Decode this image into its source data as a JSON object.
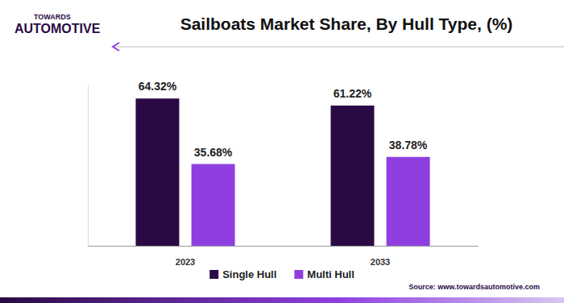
{
  "chart_data": {
    "type": "bar",
    "title": "Sailboats Market Share, By Hull Type, (%)",
    "categories": [
      "2023",
      "2033"
    ],
    "series": [
      {
        "name": "Single Hull",
        "color": "#2a0a45",
        "values": [
          64.32,
          61.22
        ],
        "value_labels": [
          "64.32%",
          "61.22%"
        ]
      },
      {
        "name": "Multi Hull",
        "color": "#8f3fe0",
        "values": [
          35.68,
          38.78
        ],
        "value_labels": [
          "35.68%",
          "38.78%"
        ]
      }
    ],
    "ylim": [
      0,
      70
    ],
    "data_labels": true,
    "tick_labels": "x",
    "legend": "bottom",
    "grid": false
  },
  "header": {
    "logo": [
      "TOWARDS",
      "AUTOMOTIVE"
    ]
  },
  "footer": {
    "source": "Source: www.towardsautomotive.com"
  }
}
